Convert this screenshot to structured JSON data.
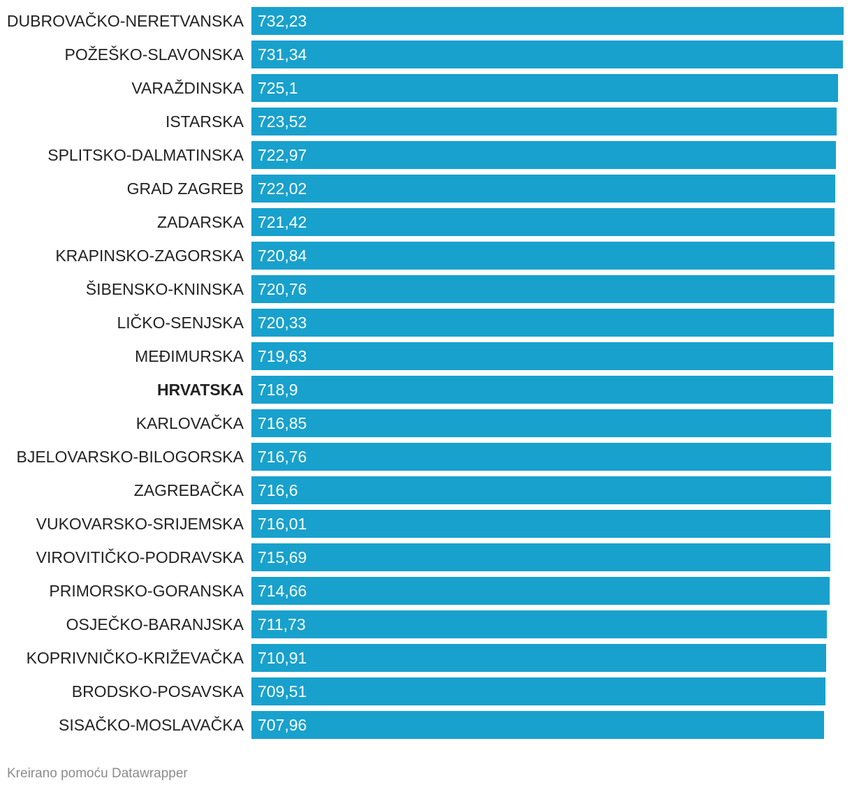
{
  "chart_data": {
    "type": "bar",
    "orientation": "horizontal",
    "categories": [
      "DUBROVAČKO-NERETVANSKA",
      "POŽEŠKO-SLAVONSKA",
      "VARAŽDINSKA",
      "ISTARSKA",
      "SPLITSKO-DALMATINSKA",
      "GRAD ZAGREB",
      "ZADARSKA",
      "KRAPINSKO-ZAGORSKA",
      "ŠIBENSKO-KNINSKA",
      "LIČKO-SENJSKA",
      "MEĐIMURSKA",
      "HRVATSKA",
      "KARLOVAČKA",
      "BJELOVARSKO-BILOGORSKA",
      "ZAGREBAČKA",
      "VUKOVARSKO-SRIJEMSKA",
      "VIROVITIČKO-PODRAVSKA",
      "PRIMORSKO-GORANSKA",
      "OSJEČKO-BARANJSKA",
      "KOPRIVNIČKO-KRIŽEVAČKA",
      "BRODSKO-POSAVSKA",
      "SISAČKO-MOSLAVAČKA"
    ],
    "values": [
      732.23,
      731.34,
      725.1,
      723.52,
      722.97,
      722.02,
      721.42,
      720.84,
      720.76,
      720.33,
      719.63,
      718.9,
      716.85,
      716.76,
      716.6,
      716.01,
      715.69,
      714.66,
      711.73,
      710.91,
      709.51,
      707.96
    ],
    "value_labels": [
      "732,23",
      "731,34",
      "725,1",
      "723,52",
      "722,97",
      "722,02",
      "721,42",
      "720,84",
      "720,76",
      "720,33",
      "719,63",
      "718,9",
      "716,85",
      "716,76",
      "716,6",
      "716,01",
      "715,69",
      "714,66",
      "711,73",
      "710,91",
      "709,51",
      "707,96"
    ],
    "highlighted_category": "HRVATSKA",
    "xlim": [
      0,
      732.23
    ],
    "grid": false,
    "bar_color": "#18a1cd",
    "title": "",
    "xlabel": "",
    "ylabel": ""
  },
  "footer": {
    "credit": "Kreirano pomoću Datawrapper"
  }
}
